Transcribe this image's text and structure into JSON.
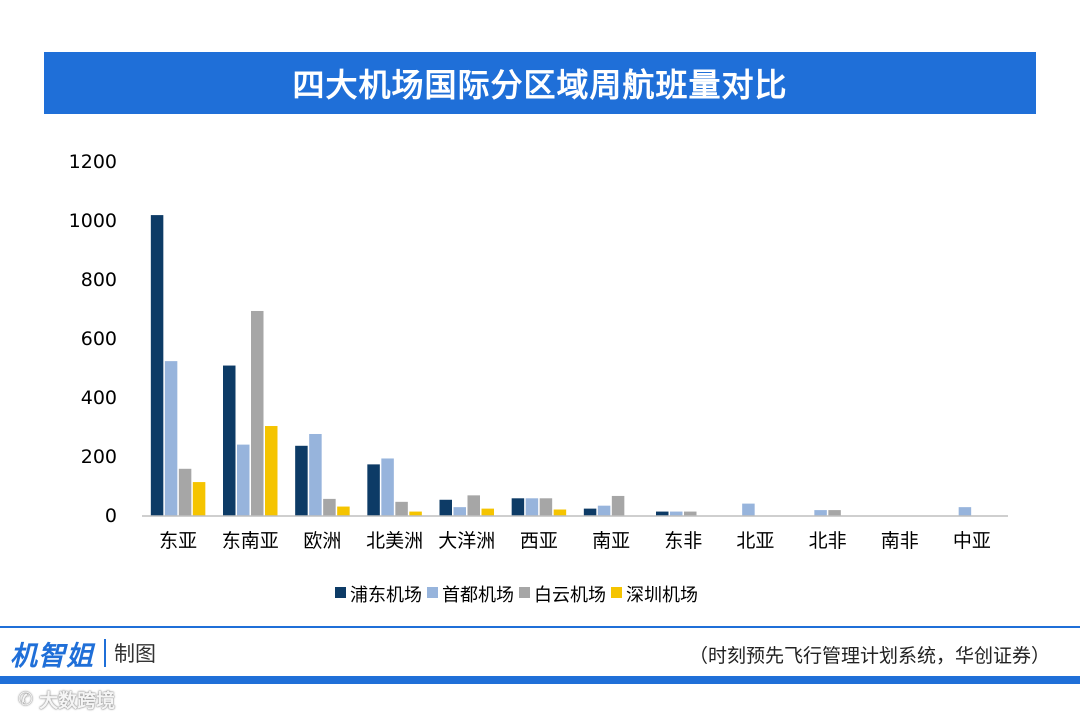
{
  "chart_data": {
    "type": "bar",
    "title": "四大机场国际分区域周航班量对比",
    "xlabel": "",
    "ylabel": "",
    "ylim": [
      0,
      1200
    ],
    "yticks": [
      0,
      200,
      400,
      600,
      800,
      1000,
      1200
    ],
    "grid": false,
    "legend_position": "bottom",
    "categories": [
      "东亚",
      "东南亚",
      "欧洲",
      "北美洲",
      "大洋洲",
      "西亚",
      "南亚",
      "东非",
      "北亚",
      "北非",
      "南非",
      "中亚"
    ],
    "series": [
      {
        "name": "浦东机场",
        "color": "#0d3b66",
        "values": [
          1020,
          510,
          238,
          175,
          55,
          60,
          25,
          15,
          0,
          0,
          0,
          0
        ]
      },
      {
        "name": "首都机场",
        "color": "#97b4dc",
        "values": [
          525,
          242,
          278,
          195,
          30,
          60,
          35,
          15,
          42,
          20,
          0,
          30
        ]
      },
      {
        "name": "白云机场",
        "color": "#a6a6a6",
        "values": [
          160,
          695,
          58,
          48,
          70,
          60,
          68,
          15,
          0,
          20,
          0,
          0
        ]
      },
      {
        "name": "深圳机场",
        "color": "#f5c400",
        "values": [
          115,
          305,
          32,
          15,
          25,
          22,
          0,
          0,
          0,
          0,
          0,
          0
        ]
      }
    ]
  },
  "footer": {
    "brand_name": "机智姐",
    "brand_suffix": "制图",
    "source": "（时刻预先飞行管理计划系统，华创证券）",
    "watermark": "大数跨境",
    "watermark_icon": "chat-icon",
    "watermark_glyph": "✆"
  },
  "colors": {
    "accent": "#1f6fd8"
  }
}
